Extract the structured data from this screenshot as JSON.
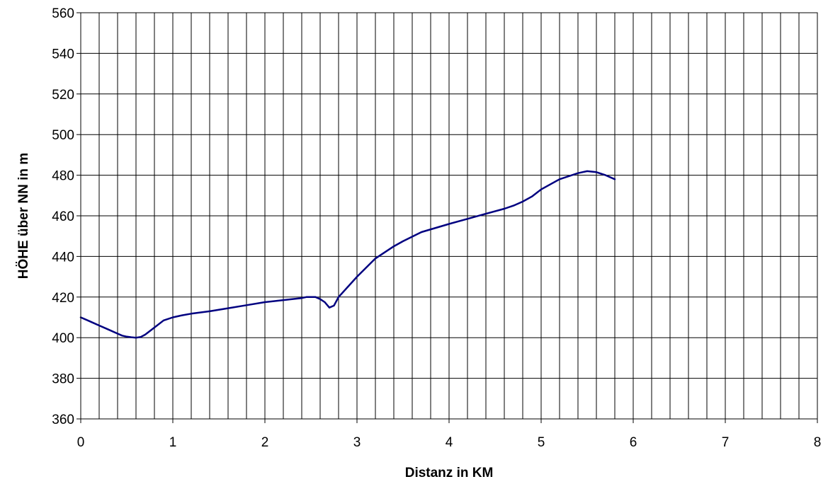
{
  "chart_data": {
    "type": "line",
    "title": "",
    "xlabel": "Distanz in KM",
    "ylabel": "HÖHE über NN in m",
    "xlim": [
      0,
      8
    ],
    "ylim": [
      360,
      560
    ],
    "x_ticks": [
      0,
      1,
      2,
      3,
      4,
      5,
      6,
      7,
      8
    ],
    "y_ticks": [
      360,
      380,
      400,
      420,
      440,
      460,
      480,
      500,
      520,
      540,
      560
    ],
    "x_minor_step": 0.2,
    "grid": true,
    "legend": "none",
    "series": [
      {
        "color": "#000080",
        "x": [
          0,
          0.1,
          0.2,
          0.3,
          0.4,
          0.45,
          0.5,
          0.55,
          0.6,
          0.65,
          0.7,
          0.8,
          0.9,
          1.0,
          1.1,
          1.2,
          1.4,
          1.6,
          1.8,
          2.0,
          2.2,
          2.4,
          2.45,
          2.55,
          2.6,
          2.65,
          2.7,
          2.75,
          2.8,
          3.0,
          3.2,
          3.4,
          3.5,
          3.7,
          4.0,
          4.2,
          4.4,
          4.6,
          4.7,
          4.8,
          4.9,
          5.0,
          5.2,
          5.4,
          5.5,
          5.6,
          5.7,
          5.8
        ],
        "y": [
          410,
          408,
          406,
          404,
          402,
          401,
          400.5,
          400.2,
          400,
          400.3,
          401.5,
          405,
          408.5,
          410,
          411,
          411.8,
          413,
          414.5,
          416,
          417.5,
          418.5,
          419.5,
          420,
          420,
          419,
          417.5,
          414.8,
          415.8,
          420,
          430,
          439,
          445,
          447.5,
          452,
          456,
          458.5,
          461,
          463.5,
          465,
          467,
          469.5,
          473,
          478,
          481,
          482,
          481.5,
          480,
          478
        ]
      }
    ]
  }
}
